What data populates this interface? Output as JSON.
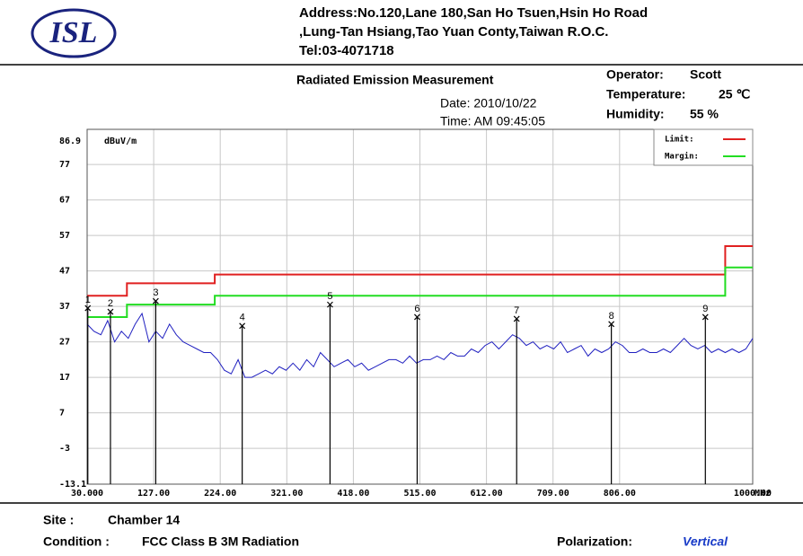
{
  "header": {
    "logo": "ISL",
    "address": [
      "Address:No.120,Lane 180,San Ho Tsuen,Hsin Ho Road",
      ",Lung-Tan Hsiang,Tao Yuan Conty,Taiwan R.O.C.",
      "Tel:03-4071718"
    ],
    "title": "Radiated Emission Measurement",
    "date": "Date: 2010/10/22",
    "time": "Time: AM 09:45:05",
    "operator_label": "Operator:",
    "operator": "Scott",
    "temperature_label": "Temperature:",
    "temperature": "25 ℃",
    "humidity_label": "Humidity:",
    "humidity": "55 %"
  },
  "chart_data": {
    "type": "line",
    "y_unit": "dBuV/m",
    "x_unit": "MHz",
    "xlim": [
      30,
      1000
    ],
    "ylim": [
      -13.1,
      86.9
    ],
    "xticks": [
      {
        "value": 30,
        "label": "30.000"
      },
      {
        "value": 127,
        "label": "127.00"
      },
      {
        "value": 224,
        "label": "224.00"
      },
      {
        "value": 321,
        "label": "321.00"
      },
      {
        "value": 418,
        "label": "418.00"
      },
      {
        "value": 515,
        "label": "515.00"
      },
      {
        "value": 612,
        "label": "612.00"
      },
      {
        "value": 709,
        "label": "709.00"
      },
      {
        "value": 806,
        "label": "806.00"
      },
      {
        "value": 1000,
        "label": "1000.00"
      }
    ],
    "yticks": [
      86.9,
      77,
      67,
      57,
      47,
      37,
      27,
      17,
      7,
      -3,
      -13.1
    ],
    "grid": true,
    "series": [
      {
        "name": "Limit:",
        "color": "#e02020",
        "x": [
          30,
          88,
          88,
          216,
          216,
          960,
          960,
          1000
        ],
        "values": [
          40,
          40,
          43.5,
          43.5,
          46,
          46,
          54,
          54
        ]
      },
      {
        "name": "Margin:",
        "color": "#22dd22",
        "x": [
          30,
          88,
          88,
          216,
          216,
          960,
          960,
          1000
        ],
        "values": [
          34,
          34,
          37.5,
          37.5,
          40,
          40,
          48,
          48
        ]
      }
    ],
    "trace": {
      "color": "#2020c0",
      "x": [
        30,
        40,
        50,
        60,
        70,
        80,
        90,
        100,
        110,
        120,
        130,
        140,
        150,
        160,
        170,
        180,
        190,
        200,
        210,
        220,
        230,
        240,
        250,
        260,
        270,
        280,
        290,
        300,
        310,
        320,
        330,
        340,
        350,
        360,
        370,
        380,
        390,
        400,
        410,
        420,
        430,
        440,
        450,
        460,
        470,
        480,
        490,
        500,
        510,
        520,
        530,
        540,
        550,
        560,
        570,
        580,
        590,
        600,
        610,
        620,
        630,
        640,
        650,
        660,
        670,
        680,
        690,
        700,
        710,
        720,
        730,
        740,
        750,
        760,
        770,
        780,
        790,
        800,
        810,
        820,
        830,
        840,
        850,
        860,
        870,
        880,
        890,
        900,
        910,
        920,
        930,
        940,
        950,
        960,
        970,
        980,
        990,
        1000
      ],
      "values": [
        32,
        30,
        29,
        33,
        27,
        30,
        28,
        32,
        35,
        27,
        30,
        28,
        32,
        29,
        27,
        26,
        25,
        24,
        24,
        22,
        19,
        18,
        22,
        17,
        17,
        18,
        19,
        18,
        20,
        19,
        21,
        19,
        22,
        20,
        24,
        22,
        20,
        21,
        22,
        20,
        21,
        19,
        20,
        21,
        22,
        22,
        21,
        23,
        21,
        22,
        22,
        23,
        22,
        24,
        23,
        23,
        25,
        24,
        26,
        27,
        25,
        27,
        29,
        28,
        26,
        27,
        25,
        26,
        25,
        27,
        24,
        25,
        26,
        23,
        25,
        24,
        25,
        27,
        26,
        24,
        24,
        25,
        24,
        24,
        25,
        24,
        26,
        28,
        26,
        25,
        26,
        24,
        25,
        24,
        25,
        24,
        25,
        28
      ]
    },
    "markers": {
      "labels": [
        "1",
        "2",
        "3",
        "4",
        "5",
        "6",
        "7",
        "8",
        "9"
      ],
      "x": [
        31,
        64,
        130,
        256,
        384,
        511,
        656,
        794,
        931
      ],
      "values": [
        36.5,
        35.5,
        38.5,
        31.5,
        37.5,
        34,
        33.5,
        32,
        34
      ]
    }
  },
  "footer": {
    "site_label": "Site :",
    "site": "Chamber 14",
    "condition_label": "Condition :",
    "condition": "FCC Class B 3M Radiation",
    "polarization_label": "Polarization:",
    "polarization": "Vertical"
  }
}
